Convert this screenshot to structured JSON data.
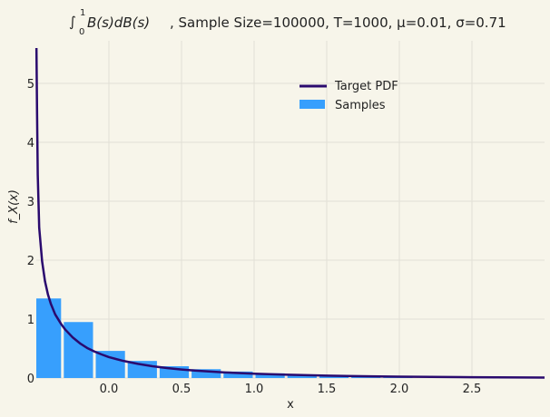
{
  "chart_data": {
    "type": "bar",
    "title_parts": {
      "integral_symbol": "∫",
      "upper_limit": "1",
      "lower_limit": "0",
      "integrand": "B(s)dB(s)",
      "rest": ", Sample Size=100000, T=1000, μ=0.01, σ=0.71"
    },
    "xlabel": "x",
    "ylabel": "f_X(x)",
    "xlim": [
      -0.5,
      3.0
    ],
    "ylim": [
      0,
      5.8
    ],
    "xticks": [
      "0.0",
      "0.5",
      "1.0",
      "1.5",
      "2.0",
      "2.5"
    ],
    "xtick_values": [
      0.0,
      0.5,
      1.0,
      1.5,
      2.0,
      2.5
    ],
    "yticks": [
      "0",
      "1",
      "2",
      "3",
      "4",
      "5"
    ],
    "ytick_values": [
      0,
      1,
      2,
      3,
      4,
      5
    ],
    "grid": true,
    "legend_position": "top-right",
    "series": [
      {
        "name": "Target PDF",
        "kind": "line",
        "color": "#2a0a6e",
        "x": [
          -0.499,
          -0.495,
          -0.49,
          -0.48,
          -0.46,
          -0.44,
          -0.42,
          -0.4,
          -0.37,
          -0.33,
          -0.3,
          -0.25,
          -0.2,
          -0.15,
          -0.1,
          -0.05,
          0.0,
          0.1,
          0.2,
          0.3,
          0.4,
          0.5,
          0.6,
          0.8,
          1.0,
          1.2,
          1.5,
          1.8,
          2.0,
          2.5,
          3.0
        ],
        "y": [
          5.6,
          4.55,
          3.45,
          2.55,
          1.98,
          1.64,
          1.42,
          1.26,
          1.08,
          0.92,
          0.82,
          0.69,
          0.59,
          0.51,
          0.45,
          0.4,
          0.355,
          0.29,
          0.24,
          0.2,
          0.17,
          0.145,
          0.125,
          0.095,
          0.073,
          0.057,
          0.04,
          0.029,
          0.023,
          0.013,
          0.008
        ]
      },
      {
        "name": "Samples",
        "kind": "bar",
        "color": "#379ffd",
        "bin_edges": [
          -0.5,
          -0.32,
          -0.1,
          0.12,
          0.34,
          0.56,
          0.78,
          1.0,
          1.22,
          1.44,
          1.66,
          1.88,
          2.1
        ],
        "values": [
          1.35,
          0.95,
          0.46,
          0.29,
          0.2,
          0.15,
          0.11,
          0.08,
          0.06,
          0.045,
          0.03,
          0.02
        ]
      }
    ]
  }
}
